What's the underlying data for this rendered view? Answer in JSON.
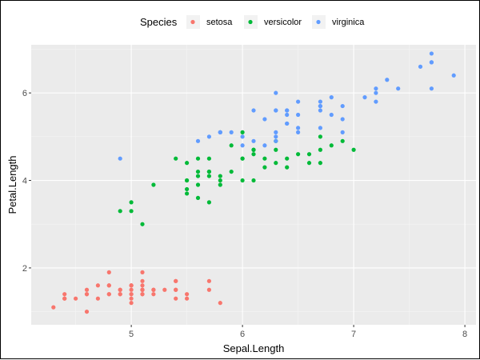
{
  "chart_data": {
    "type": "scatter",
    "xlabel": "Sepal.Length",
    "ylabel": "Petal.Length",
    "xlim": [
      4.1,
      8.1
    ],
    "ylim": [
      0.7,
      7.1
    ],
    "x_ticks": [
      5,
      6,
      7,
      8
    ],
    "y_ticks": [
      2,
      4,
      6
    ],
    "grid": true,
    "legend": {
      "title": "Species",
      "position": "top",
      "entries": [
        "setosa",
        "versicolor",
        "virginica"
      ]
    },
    "series": [
      {
        "name": "setosa",
        "color": "#F8766D",
        "points": [
          [
            5.1,
            1.4
          ],
          [
            4.9,
            1.4
          ],
          [
            4.7,
            1.3
          ],
          [
            4.6,
            1.5
          ],
          [
            5.0,
            1.4
          ],
          [
            5.4,
            1.7
          ],
          [
            4.6,
            1.4
          ],
          [
            5.0,
            1.5
          ],
          [
            4.4,
            1.4
          ],
          [
            4.9,
            1.5
          ],
          [
            5.4,
            1.5
          ],
          [
            4.8,
            1.6
          ],
          [
            4.8,
            1.4
          ],
          [
            4.3,
            1.1
          ],
          [
            5.8,
            1.2
          ],
          [
            5.7,
            1.5
          ],
          [
            5.4,
            1.3
          ],
          [
            5.1,
            1.4
          ],
          [
            5.7,
            1.7
          ],
          [
            5.1,
            1.5
          ],
          [
            5.4,
            1.7
          ],
          [
            5.1,
            1.5
          ],
          [
            4.6,
            1.0
          ],
          [
            5.1,
            1.7
          ],
          [
            4.8,
            1.9
          ],
          [
            5.0,
            1.6
          ],
          [
            5.0,
            1.6
          ],
          [
            5.2,
            1.5
          ],
          [
            5.2,
            1.4
          ],
          [
            4.7,
            1.6
          ],
          [
            4.8,
            1.6
          ],
          [
            5.4,
            1.5
          ],
          [
            5.2,
            1.5
          ],
          [
            5.5,
            1.4
          ],
          [
            4.9,
            1.5
          ],
          [
            5.0,
            1.2
          ],
          [
            5.5,
            1.3
          ],
          [
            4.9,
            1.4
          ],
          [
            4.4,
            1.3
          ],
          [
            5.1,
            1.5
          ],
          [
            5.0,
            1.3
          ],
          [
            4.5,
            1.3
          ],
          [
            4.4,
            1.3
          ],
          [
            5.0,
            1.6
          ],
          [
            5.1,
            1.9
          ],
          [
            4.8,
            1.4
          ],
          [
            5.1,
            1.6
          ],
          [
            4.6,
            1.4
          ],
          [
            5.3,
            1.5
          ],
          [
            5.0,
            1.4
          ]
        ]
      },
      {
        "name": "versicolor",
        "color": "#00BA38",
        "points": [
          [
            7.0,
            4.7
          ],
          [
            6.4,
            4.5
          ],
          [
            6.9,
            4.9
          ],
          [
            5.5,
            4.0
          ],
          [
            6.5,
            4.6
          ],
          [
            5.7,
            4.5
          ],
          [
            6.3,
            4.7
          ],
          [
            4.9,
            3.3
          ],
          [
            6.6,
            4.6
          ],
          [
            5.2,
            3.9
          ],
          [
            5.0,
            3.5
          ],
          [
            5.9,
            4.2
          ],
          [
            6.0,
            4.0
          ],
          [
            6.1,
            4.7
          ],
          [
            5.6,
            3.6
          ],
          [
            6.7,
            4.4
          ],
          [
            5.6,
            4.5
          ],
          [
            5.8,
            4.1
          ],
          [
            6.2,
            4.5
          ],
          [
            5.6,
            3.9
          ],
          [
            5.9,
            4.8
          ],
          [
            6.1,
            4.0
          ],
          [
            6.3,
            4.9
          ],
          [
            6.1,
            4.7
          ],
          [
            6.4,
            4.3
          ],
          [
            6.6,
            4.4
          ],
          [
            6.8,
            4.8
          ],
          [
            6.7,
            5.0
          ],
          [
            6.0,
            4.5
          ],
          [
            5.7,
            3.5
          ],
          [
            5.5,
            3.8
          ],
          [
            5.5,
            3.7
          ],
          [
            5.8,
            3.9
          ],
          [
            6.0,
            5.1
          ],
          [
            5.4,
            4.5
          ],
          [
            6.0,
            4.5
          ],
          [
            6.7,
            4.7
          ],
          [
            6.3,
            4.4
          ],
          [
            5.6,
            4.1
          ],
          [
            5.5,
            4.0
          ],
          [
            5.5,
            4.4
          ],
          [
            6.1,
            4.6
          ],
          [
            5.8,
            4.0
          ],
          [
            5.0,
            3.3
          ],
          [
            5.6,
            4.2
          ],
          [
            5.7,
            4.2
          ],
          [
            5.7,
            4.2
          ],
          [
            6.2,
            4.3
          ],
          [
            5.1,
            3.0
          ],
          [
            5.7,
            4.1
          ]
        ]
      },
      {
        "name": "virginica",
        "color": "#619CFF",
        "points": [
          [
            6.3,
            6.0
          ],
          [
            5.8,
            5.1
          ],
          [
            7.1,
            5.9
          ],
          [
            6.3,
            5.6
          ],
          [
            6.5,
            5.8
          ],
          [
            7.6,
            6.6
          ],
          [
            4.9,
            4.5
          ],
          [
            7.3,
            6.3
          ],
          [
            6.7,
            5.8
          ],
          [
            7.2,
            6.1
          ],
          [
            6.5,
            5.1
          ],
          [
            6.4,
            5.3
          ],
          [
            6.8,
            5.5
          ],
          [
            5.7,
            5.0
          ],
          [
            5.8,
            5.1
          ],
          [
            6.4,
            5.3
          ],
          [
            6.5,
            5.5
          ],
          [
            7.7,
            6.7
          ],
          [
            7.7,
            6.9
          ],
          [
            6.0,
            5.0
          ],
          [
            6.9,
            5.7
          ],
          [
            5.6,
            4.9
          ],
          [
            7.7,
            6.7
          ],
          [
            6.3,
            4.9
          ],
          [
            6.7,
            5.7
          ],
          [
            7.2,
            6.0
          ],
          [
            6.2,
            4.8
          ],
          [
            6.1,
            4.9
          ],
          [
            6.4,
            5.6
          ],
          [
            7.2,
            5.8
          ],
          [
            7.4,
            6.1
          ],
          [
            7.9,
            6.4
          ],
          [
            6.4,
            5.6
          ],
          [
            6.3,
            5.1
          ],
          [
            6.1,
            5.6
          ],
          [
            7.7,
            6.1
          ],
          [
            6.3,
            5.6
          ],
          [
            6.4,
            5.5
          ],
          [
            6.0,
            4.8
          ],
          [
            6.9,
            5.4
          ],
          [
            6.7,
            5.6
          ],
          [
            6.9,
            5.1
          ],
          [
            5.8,
            5.1
          ],
          [
            6.8,
            5.9
          ],
          [
            6.7,
            5.7
          ],
          [
            6.7,
            5.2
          ],
          [
            6.3,
            5.0
          ],
          [
            6.5,
            5.2
          ],
          [
            6.2,
            5.4
          ],
          [
            5.9,
            5.1
          ]
        ]
      }
    ]
  }
}
